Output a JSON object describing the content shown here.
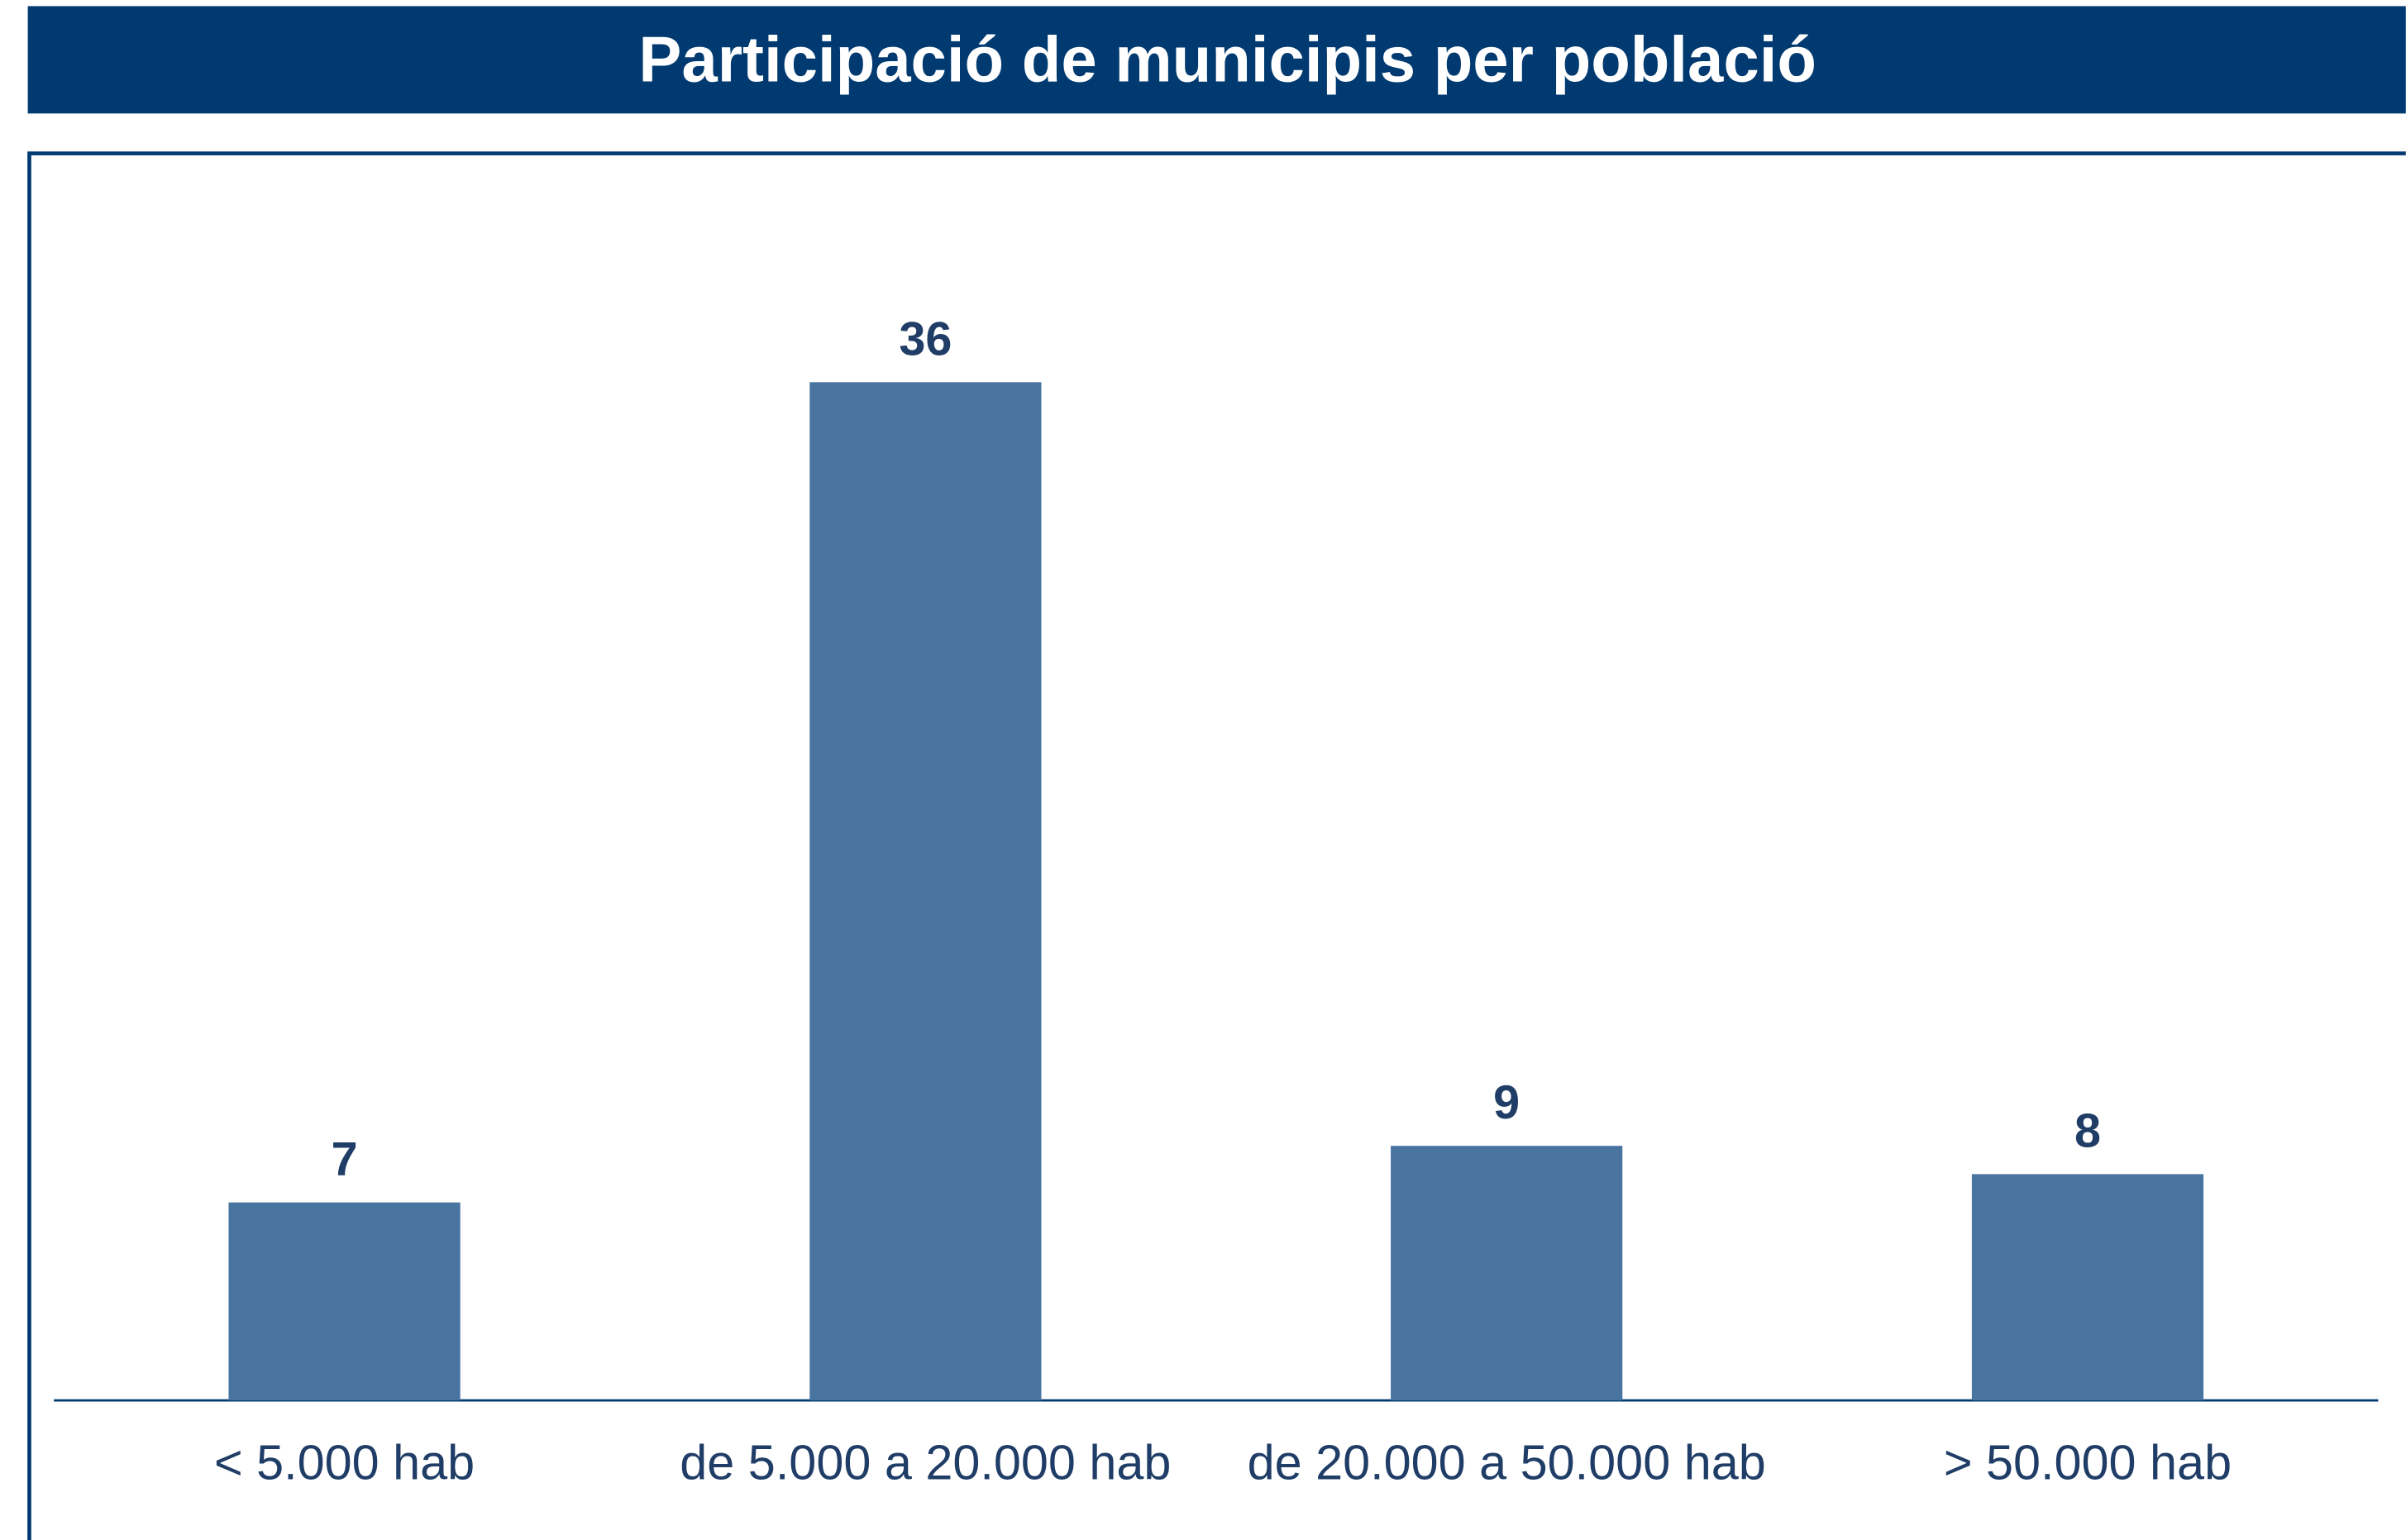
{
  "chart_data": {
    "type": "bar",
    "title": "Participació de municipis per població",
    "categories": [
      "< 5.000 hab",
      "de 5.000 a 20.000 hab",
      "de 20.000 a 50.000 hab",
      "> 50.000 hab"
    ],
    "values": [
      7,
      36,
      9,
      8
    ],
    "color": "#4a74a0",
    "ylim": [
      0,
      40
    ],
    "grid": false
  }
}
